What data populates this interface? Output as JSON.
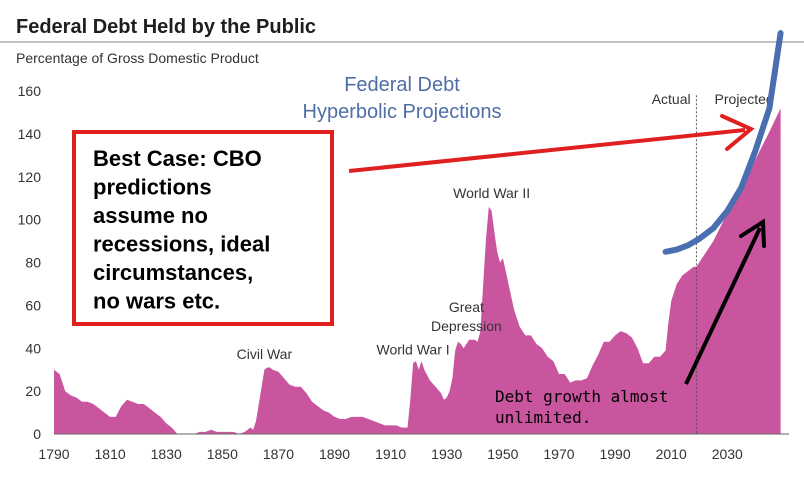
{
  "chart_data": {
    "type": "area",
    "title": "Federal Debt Held by the Public",
    "subtitle": "Percentage of Gross Domestic Product",
    "ylim": [
      0,
      160
    ],
    "xlim": [
      1790,
      2052
    ],
    "y_ticks": [
      "0",
      "20",
      "40",
      "60",
      "80",
      "100",
      "120",
      "140",
      "160"
    ],
    "x_ticks": [
      "1790",
      "1810",
      "1830",
      "1850",
      "1870",
      "1890",
      "1910",
      "1930",
      "1950",
      "1970",
      "1990",
      "2010",
      "2030"
    ],
    "colors": {
      "area": "#c9559f",
      "trend": "#4a6fb0",
      "callout": "#e02020",
      "arrow": "#000000"
    },
    "annotations": [
      {
        "text": "Civil War",
        "x": 1865,
        "y": 35
      },
      {
        "text": "World War I",
        "x": 1918,
        "y": 37
      },
      {
        "text": "Great",
        "x": 1937,
        "y": 57
      },
      {
        "text": "Depression",
        "x": 1937,
        "y": 48
      },
      {
        "text": "World War II",
        "x": 1946,
        "y": 110
      },
      {
        "text": "Actual",
        "x": 2010,
        "y": 154
      },
      {
        "text": "Projected",
        "x": 2036,
        "y": 154
      }
    ],
    "actual_projected_split": 2019,
    "x": [
      1790,
      1792,
      1794,
      1796,
      1798,
      1800,
      1802,
      1804,
      1806,
      1808,
      1810,
      1812,
      1814,
      1816,
      1818,
      1820,
      1822,
      1824,
      1826,
      1828,
      1830,
      1832,
      1834,
      1836,
      1838,
      1840,
      1842,
      1844,
      1846,
      1848,
      1850,
      1852,
      1854,
      1856,
      1858,
      1860,
      1861,
      1862,
      1863,
      1864,
      1865,
      1866,
      1867,
      1868,
      1870,
      1872,
      1874,
      1876,
      1878,
      1880,
      1882,
      1884,
      1886,
      1888,
      1890,
      1892,
      1894,
      1896,
      1898,
      1900,
      1902,
      1904,
      1906,
      1908,
      1910,
      1912,
      1914,
      1916,
      1917,
      1918,
      1919,
      1920,
      1921,
      1922,
      1924,
      1926,
      1928,
      1929,
      1930,
      1931,
      1932,
      1933,
      1934,
      1935,
      1936,
      1938,
      1940,
      1941,
      1942,
      1943,
      1944,
      1945,
      1946,
      1947,
      1948,
      1949,
      1950,
      1952,
      1954,
      1956,
      1958,
      1960,
      1962,
      1964,
      1966,
      1968,
      1970,
      1972,
      1974,
      1976,
      1978,
      1980,
      1982,
      1984,
      1986,
      1988,
      1990,
      1992,
      1994,
      1996,
      1998,
      2000,
      2002,
      2004,
      2006,
      2008,
      2009,
      2010,
      2012,
      2014,
      2016,
      2018,
      2019,
      2020,
      2025,
      2030,
      2035,
      2040,
      2045,
      2049
    ],
    "series": [
      {
        "values": [
          30,
          28,
          20,
          18,
          17,
          15,
          15,
          14,
          12,
          10,
          8,
          8,
          13,
          16,
          15,
          14,
          14,
          12,
          10,
          8,
          5,
          3,
          0,
          0,
          0,
          0,
          1,
          1,
          2,
          1,
          1,
          1,
          1,
          0,
          1,
          3,
          2,
          6,
          14,
          22,
          30,
          31,
          31,
          30,
          29,
          26,
          23,
          22,
          22,
          19,
          15,
          13,
          11,
          10,
          8,
          7,
          7,
          8,
          8,
          8,
          7,
          6,
          5,
          4,
          4,
          4,
          3,
          3,
          16,
          33,
          34,
          30,
          34,
          30,
          25,
          22,
          19,
          16,
          17,
          20,
          26,
          39,
          43,
          42,
          40,
          44,
          44,
          43,
          48,
          70,
          91,
          106,
          104,
          94,
          85,
          80,
          82,
          70,
          58,
          50,
          46,
          46,
          42,
          40,
          36,
          34,
          28,
          28,
          24,
          25,
          25,
          26,
          32,
          37,
          43,
          43,
          46,
          48,
          47,
          45,
          40,
          33,
          33,
          36,
          36,
          39,
          52,
          62,
          70,
          74,
          76,
          78,
          78,
          80,
          90,
          103,
          115,
          128,
          141,
          152
        ]
      }
    ],
    "trend_line": {
      "label": "",
      "x": [
        2008,
        2012,
        2016,
        2020,
        2025,
        2030,
        2035,
        2040,
        2045,
        2049
      ],
      "values": [
        85,
        86,
        88,
        91,
        96,
        104,
        115,
        132,
        152,
        187
      ]
    }
  },
  "overlay": {
    "title_line1": "Federal Debt",
    "title_line2": "Hyperbolic Projections",
    "callout_lines": [
      "Best Case: CBO",
      "predictions",
      "assume no",
      "recessions, ideal",
      "circumstances,",
      "no wars etc."
    ],
    "note_lines": [
      "Debt growth almost",
      "unlimited."
    ]
  }
}
